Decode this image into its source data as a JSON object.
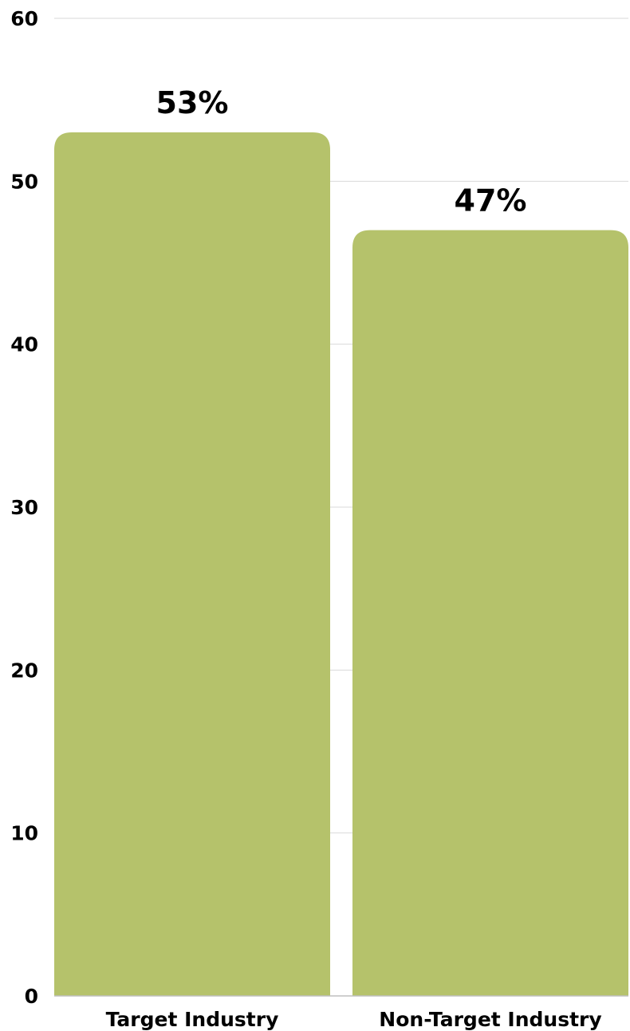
{
  "chart_data": {
    "type": "bar",
    "categories": [
      "Target Industry",
      "Non-Target Industry"
    ],
    "values": [
      53,
      47
    ],
    "value_labels": [
      "53%",
      "47%"
    ],
    "title": "",
    "xlabel": "",
    "ylabel": "",
    "ylim": [
      0,
      60
    ],
    "yticks": [
      0,
      10,
      20,
      30,
      40,
      50,
      60
    ],
    "ytick_labels": [
      "0",
      "10",
      "20",
      "30",
      "40",
      "50",
      "60"
    ],
    "grid": true,
    "legend": "none",
    "bar_color": "#b5c26b"
  }
}
